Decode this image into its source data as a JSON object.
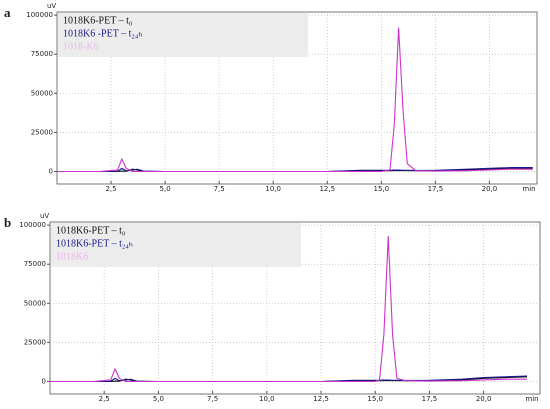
{
  "chart_data": [
    {
      "type": "line",
      "panel_label": "a",
      "y_label": "uV",
      "x_label": "min",
      "x": [
        0,
        1,
        2,
        2.8,
        3.0,
        3.2,
        3.5,
        3.7,
        4,
        5,
        7.5,
        10,
        12.5,
        14,
        15,
        15.4,
        15.6,
        15.8,
        16.0,
        16.2,
        16.6,
        17.5,
        19,
        20,
        21,
        22
      ],
      "series": [
        {
          "name": "1018K6-PET – t₀",
          "color": "#111111",
          "values": [
            0,
            0,
            0,
            0,
            300,
            200,
            1500,
            1000,
            0,
            0,
            0,
            0,
            0,
            500,
            500,
            500,
            600,
            600,
            600,
            600,
            500,
            500,
            1000,
            1500,
            2000,
            2000
          ]
        },
        {
          "name": "1018K6 -PET – t₂₄ₕ",
          "color": "#1a1a8c",
          "values": [
            0,
            0,
            0,
            200,
            2000,
            500,
            800,
            1500,
            300,
            0,
            0,
            0,
            0,
            800,
            800,
            800,
            900,
            900,
            800,
            800,
            700,
            800,
            1500,
            2000,
            2500,
            2500
          ]
        },
        {
          "name": "1018-K6",
          "color": "#cc33cc",
          "values": [
            0,
            0,
            0,
            1000,
            8000,
            2000,
            0,
            0,
            0,
            0,
            0,
            0,
            0,
            0,
            0,
            1000,
            30000,
            92000,
            40000,
            5000,
            500,
            300,
            500,
            1000,
            1500,
            1500
          ]
        }
      ],
      "xlim": [
        0,
        22.2
      ],
      "ylim": [
        -8000,
        102000
      ],
      "xticks": [
        {
          "value": 2.5,
          "label": "2,5"
        },
        {
          "value": 5,
          "label": "5,0"
        },
        {
          "value": 7.5,
          "label": "7,5"
        },
        {
          "value": 10,
          "label": "10,0"
        },
        {
          "value": 12.5,
          "label": "12,5"
        },
        {
          "value": 15,
          "label": "15,0"
        },
        {
          "value": 17.5,
          "label": "17,5"
        },
        {
          "value": 20,
          "label": "20,0"
        }
      ],
      "yticks": [
        0,
        25000,
        50000,
        75000,
        100000
      ],
      "grid": true
    },
    {
      "type": "line",
      "panel_label": "b",
      "y_label": "uV",
      "x_label": "min",
      "x": [
        0,
        1,
        2,
        2.8,
        3.0,
        3.2,
        3.5,
        3.7,
        4,
        5,
        7.5,
        10,
        12.5,
        14,
        15,
        15.2,
        15.4,
        15.6,
        15.8,
        16.0,
        16.4,
        17.5,
        19,
        20,
        21,
        22
      ],
      "series": [
        {
          "name": "1018K6-PET – t₀",
          "color": "#111111",
          "values": [
            0,
            0,
            0,
            0,
            300,
            200,
            1500,
            1000,
            0,
            0,
            0,
            0,
            0,
            500,
            500,
            500,
            600,
            600,
            600,
            600,
            500,
            500,
            1000,
            2000,
            2500,
            3000
          ]
        },
        {
          "name": "1018K6-PET – t₂₄ₕ",
          "color": "#1a1a8c",
          "values": [
            0,
            0,
            0,
            200,
            2000,
            500,
            800,
            1500,
            300,
            0,
            0,
            0,
            0,
            800,
            800,
            800,
            900,
            900,
            800,
            800,
            700,
            800,
            1500,
            2500,
            3000,
            3500
          ]
        },
        {
          "name": "1018K6",
          "color": "#cc33cc",
          "values": [
            0,
            0,
            0,
            1000,
            8000,
            2000,
            0,
            0,
            0,
            0,
            0,
            0,
            0,
            0,
            0,
            1000,
            30000,
            93000,
            30000,
            2000,
            500,
            300,
            500,
            1000,
            1500,
            1500
          ]
        }
      ],
      "xlim": [
        0,
        22.6
      ],
      "ylim": [
        -8000,
        102000
      ],
      "xticks": [
        {
          "value": 2.5,
          "label": "2,5"
        },
        {
          "value": 5,
          "label": "5,0"
        },
        {
          "value": 7.5,
          "label": "7,5"
        },
        {
          "value": 10,
          "label": "10,0"
        },
        {
          "value": 12.5,
          "label": "12,5"
        },
        {
          "value": 15,
          "label": "15,0"
        },
        {
          "value": 17.5,
          "label": "17,5"
        },
        {
          "value": 20,
          "label": "20,0"
        }
      ],
      "yticks": [
        0,
        25000,
        50000,
        75000,
        100000
      ],
      "grid": true
    }
  ]
}
